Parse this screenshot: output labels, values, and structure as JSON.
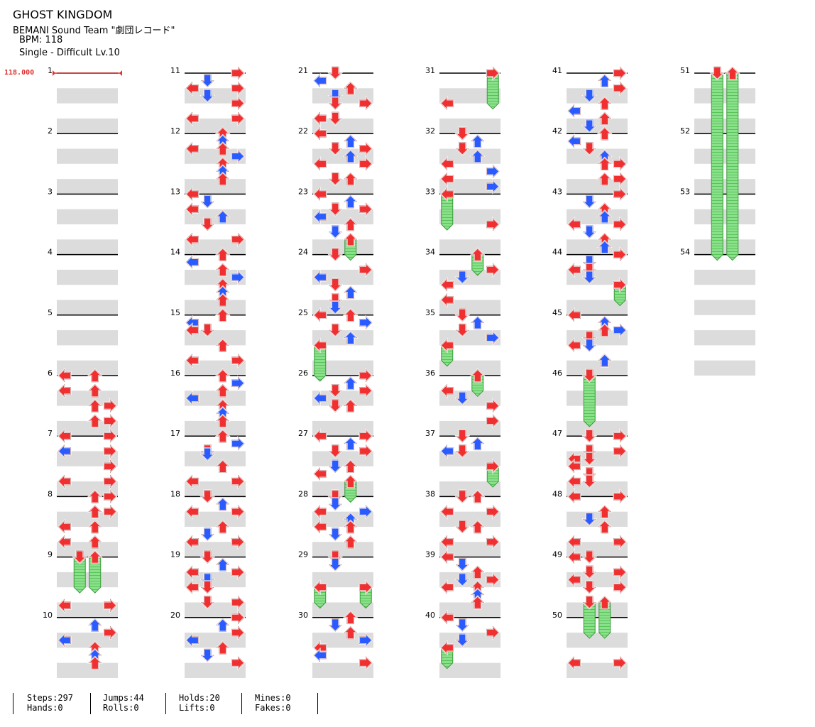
{
  "song": {
    "title": "GHOST KINGDOM",
    "artist": "BEMANI Sound Team \"劇団レコード\"",
    "bpm_line": "BPM: 118",
    "difficulty_line": "Single - Difficult Lv.10"
  },
  "bpm_marker": "118.000",
  "measures_per_column": 10,
  "total_measures": 54,
  "arrow_colors": {
    "quarter": "#f03030",
    "eighth": "#2a5bff",
    "hold": "#6fd66f"
  },
  "notes": [
    {
      "m": 6,
      "b": 0,
      "l": 0
    },
    {
      "m": 6,
      "b": 0,
      "l": 2
    },
    {
      "m": 6,
      "b": 1,
      "l": 0
    },
    {
      "m": 6,
      "b": 1,
      "l": 2
    },
    {
      "m": 6,
      "b": 2,
      "l": 2
    },
    {
      "m": 6,
      "b": 2,
      "l": 3
    },
    {
      "m": 6,
      "b": 3,
      "l": 2
    },
    {
      "m": 6,
      "b": 3,
      "l": 3
    },
    {
      "m": 7,
      "b": 0,
      "l": 0
    },
    {
      "m": 7,
      "b": 0,
      "l": 3
    },
    {
      "m": 7,
      "b": 1,
      "l": 0,
      "e": 1
    },
    {
      "m": 7,
      "b": 1,
      "l": 3
    },
    {
      "m": 7,
      "b": 2,
      "l": 3
    },
    {
      "m": 7,
      "b": 3,
      "l": 0
    },
    {
      "m": 7,
      "b": 3,
      "l": 3
    },
    {
      "m": 8,
      "b": 0,
      "l": 2
    },
    {
      "m": 8,
      "b": 0,
      "l": 3
    },
    {
      "m": 8,
      "b": 1,
      "l": 2
    },
    {
      "m": 8,
      "b": 1,
      "l": 3
    },
    {
      "m": 8,
      "b": 2,
      "l": 0
    },
    {
      "m": 8,
      "b": 2,
      "l": 2
    },
    {
      "m": 8,
      "b": 3,
      "l": 0
    },
    {
      "m": 8,
      "b": 3,
      "l": 2
    },
    {
      "m": 9,
      "b": 0,
      "l": 1,
      "h": 2
    },
    {
      "m": 9,
      "b": 0,
      "l": 2,
      "h": 2
    },
    {
      "m": 10,
      "b": -0.8,
      "l": 0
    },
    {
      "m": 10,
      "b": -0.8,
      "l": 3
    },
    {
      "m": 10,
      "b": 0.5,
      "l": 2,
      "e": 1
    },
    {
      "m": 10,
      "b": 1,
      "l": 3
    },
    {
      "m": 10,
      "b": 1.5,
      "l": 0,
      "e": 1
    },
    {
      "m": 10,
      "b": 2,
      "l": 2
    },
    {
      "m": 10,
      "b": 2.5,
      "l": 2,
      "e": 1
    },
    {
      "m": 10,
      "b": 3,
      "l": 2
    },
    {
      "m": 11,
      "b": 0,
      "l": 3
    },
    {
      "m": 11,
      "b": 0.5,
      "l": 1,
      "e": 1
    },
    {
      "m": 11,
      "b": 1,
      "l": 0
    },
    {
      "m": 11,
      "b": 1,
      "l": 3
    },
    {
      "m": 11,
      "b": 1.5,
      "l": 1,
      "e": 1
    },
    {
      "m": 11,
      "b": 2,
      "l": 3
    },
    {
      "m": 11,
      "b": 3,
      "l": 0
    },
    {
      "m": 11,
      "b": 3,
      "l": 3
    },
    {
      "m": 12,
      "b": 0,
      "l": 2
    },
    {
      "m": 12,
      "b": 0.5,
      "l": 2,
      "e": 1
    },
    {
      "m": 12,
      "b": 1,
      "l": 0
    },
    {
      "m": 12,
      "b": 1,
      "l": 2
    },
    {
      "m": 12,
      "b": 1.5,
      "l": 3,
      "e": 1
    },
    {
      "m": 12,
      "b": 2,
      "l": 2
    },
    {
      "m": 12,
      "b": 2.5,
      "l": 2,
      "e": 1
    },
    {
      "m": 12,
      "b": 3,
      "l": 2
    },
    {
      "m": 13,
      "b": 0,
      "l": 0
    },
    {
      "m": 13,
      "b": 0.5,
      "l": 1,
      "e": 1
    },
    {
      "m": 13,
      "b": 1,
      "l": 0
    },
    {
      "m": 13,
      "b": 1.5,
      "l": 2,
      "e": 1
    },
    {
      "m": 13,
      "b": 2,
      "l": 1
    },
    {
      "m": 13,
      "b": 3,
      "l": 0
    },
    {
      "m": 13,
      "b": 3,
      "l": 3
    },
    {
      "m": 14,
      "b": 0,
      "l": 2
    },
    {
      "m": 14,
      "b": 0.5,
      "l": 0,
      "e": 1
    },
    {
      "m": 14,
      "b": 1,
      "l": 2
    },
    {
      "m": 14,
      "b": 1.5,
      "l": 3,
      "e": 1
    },
    {
      "m": 14,
      "b": 2,
      "l": 2
    },
    {
      "m": 14,
      "b": 2.5,
      "l": 2,
      "e": 1
    },
    {
      "m": 14,
      "b": 3,
      "l": 2
    },
    {
      "m": 15,
      "b": 0,
      "l": 2
    },
    {
      "m": 15,
      "b": 0.5,
      "l": 0,
      "e": 1
    },
    {
      "m": 15,
      "b": 1,
      "l": 0
    },
    {
      "m": 15,
      "b": 1,
      "l": 1
    },
    {
      "m": 15,
      "b": 2,
      "l": 2
    },
    {
      "m": 15,
      "b": 3,
      "l": 0
    },
    {
      "m": 15,
      "b": 3,
      "l": 3
    },
    {
      "m": 16,
      "b": 0,
      "l": 2
    },
    {
      "m": 16,
      "b": 0.5,
      "l": 3,
      "e": 1
    },
    {
      "m": 16,
      "b": 1,
      "l": 2
    },
    {
      "m": 16,
      "b": 1.5,
      "l": 0,
      "e": 1
    },
    {
      "m": 16,
      "b": 2,
      "l": 2
    },
    {
      "m": 16,
      "b": 2.5,
      "l": 2,
      "e": 1
    },
    {
      "m": 16,
      "b": 3,
      "l": 2
    },
    {
      "m": 17,
      "b": 0,
      "l": 2
    },
    {
      "m": 17,
      "b": 0.5,
      "l": 3,
      "e": 1
    },
    {
      "m": 17,
      "b": 1,
      "l": 1
    },
    {
      "m": 17,
      "b": 1.2,
      "l": 1,
      "e": 1
    },
    {
      "m": 17,
      "b": 2,
      "l": 2
    },
    {
      "m": 17,
      "b": 3,
      "l": 0
    },
    {
      "m": 17,
      "b": 3,
      "l": 3
    },
    {
      "m": 18,
      "b": 0,
      "l": 1
    },
    {
      "m": 18,
      "b": 0.5,
      "l": 2,
      "e": 1
    },
    {
      "m": 18,
      "b": 1,
      "l": 0
    },
    {
      "m": 18,
      "b": 1,
      "l": 3
    },
    {
      "m": 18,
      "b": 2,
      "l": 2
    },
    {
      "m": 18,
      "b": 2.5,
      "l": 1,
      "e": 1
    },
    {
      "m": 18,
      "b": 3,
      "l": 0
    },
    {
      "m": 18,
      "b": 3,
      "l": 3
    },
    {
      "m": 19,
      "b": 0,
      "l": 1
    },
    {
      "m": 19,
      "b": 0.5,
      "l": 2,
      "e": 1
    },
    {
      "m": 19,
      "b": 1,
      "l": 0
    },
    {
      "m": 19,
      "b": 1,
      "l": 3
    },
    {
      "m": 19,
      "b": 1.5,
      "l": 1,
      "e": 1
    },
    {
      "m": 19,
      "b": 2,
      "l": 0
    },
    {
      "m": 19,
      "b": 2,
      "l": 1
    },
    {
      "m": 19,
      "b": 3,
      "l": 1
    },
    {
      "m": 19,
      "b": 3,
      "l": 3
    },
    {
      "m": 20,
      "b": 0,
      "l": 3
    },
    {
      "m": 20,
      "b": 0.5,
      "l": 2,
      "e": 1
    },
    {
      "m": 20,
      "b": 1,
      "l": 3
    },
    {
      "m": 20,
      "b": 1.5,
      "l": 0,
      "e": 1
    },
    {
      "m": 20,
      "b": 2,
      "l": 2
    },
    {
      "m": 20,
      "b": 2.5,
      "l": 1,
      "e": 1
    },
    {
      "m": 20,
      "b": 3,
      "l": 3
    },
    {
      "m": 21,
      "b": 0,
      "l": 1
    },
    {
      "m": 21,
      "b": 0.5,
      "l": 0,
      "e": 1
    },
    {
      "m": 21,
      "b": 1,
      "l": 2
    },
    {
      "m": 21,
      "b": 1.5,
      "l": 1,
      "e": 1
    },
    {
      "m": 21,
      "b": 2,
      "l": 1
    },
    {
      "m": 21,
      "b": 2,
      "l": 3
    },
    {
      "m": 21,
      "b": 3,
      "l": 0
    },
    {
      "m": 21,
      "b": 3,
      "l": 1
    },
    {
      "m": 22,
      "b": 0,
      "l": 0
    },
    {
      "m": 22,
      "b": 0.5,
      "l": 2,
      "e": 1
    },
    {
      "m": 22,
      "b": 1,
      "l": 1
    },
    {
      "m": 22,
      "b": 1,
      "l": 3
    },
    {
      "m": 22,
      "b": 1.5,
      "l": 2,
      "e": 1
    },
    {
      "m": 22,
      "b": 2,
      "l": 0
    },
    {
      "m": 22,
      "b": 2,
      "l": 3
    },
    {
      "m": 22,
      "b": 3,
      "l": 1
    },
    {
      "m": 22,
      "b": 3,
      "l": 2
    },
    {
      "m": 23,
      "b": 0,
      "l": 0
    },
    {
      "m": 23,
      "b": 0.5,
      "l": 2,
      "e": 1
    },
    {
      "m": 23,
      "b": 1,
      "l": 1
    },
    {
      "m": 23,
      "b": 1,
      "l": 3
    },
    {
      "m": 23,
      "b": 1.5,
      "l": 0,
      "e": 1
    },
    {
      "m": 23,
      "b": 2,
      "l": 2
    },
    {
      "m": 23,
      "b": 2.5,
      "l": 1,
      "e": 1
    },
    {
      "m": 23,
      "b": 3,
      "l": 2,
      "h": 1
    },
    {
      "m": 24,
      "b": 0,
      "l": 1
    },
    {
      "m": 24,
      "b": 1,
      "l": 3
    },
    {
      "m": 24,
      "b": 1.5,
      "l": 0,
      "e": 1
    },
    {
      "m": 24,
      "b": 2,
      "l": 1
    },
    {
      "m": 24,
      "b": 2.5,
      "l": 2,
      "e": 1
    },
    {
      "m": 24,
      "b": 3,
      "l": 1
    },
    {
      "m": 24,
      "b": 3.5,
      "l": 1,
      "e": 1
    },
    {
      "m": 25,
      "b": 0,
      "l": 0
    },
    {
      "m": 25,
      "b": 0,
      "l": 2
    },
    {
      "m": 25,
      "b": 0.5,
      "l": 3,
      "e": 1
    },
    {
      "m": 25,
      "b": 1,
      "l": 1
    },
    {
      "m": 25,
      "b": 1.5,
      "l": 2,
      "e": 1
    },
    {
      "m": 25,
      "b": 2,
      "l": 0,
      "h": 2
    },
    {
      "m": 26,
      "b": 0,
      "l": 3
    },
    {
      "m": 26,
      "b": 0.5,
      "l": 2,
      "e": 1
    },
    {
      "m": 26,
      "b": 1,
      "l": 1
    },
    {
      "m": 26,
      "b": 1,
      "l": 3
    },
    {
      "m": 26,
      "b": 1.5,
      "l": 0,
      "e": 1
    },
    {
      "m": 26,
      "b": 2,
      "l": 1
    },
    {
      "m": 26,
      "b": 2,
      "l": 2
    },
    {
      "m": 27,
      "b": 0,
      "l": 0
    },
    {
      "m": 27,
      "b": 0,
      "l": 3
    },
    {
      "m": 27,
      "b": 0.5,
      "l": 2,
      "e": 1
    },
    {
      "m": 27,
      "b": 1,
      "l": 1
    },
    {
      "m": 27,
      "b": 1,
      "l": 3
    },
    {
      "m": 27,
      "b": 2,
      "l": 1,
      "e": 1
    },
    {
      "m": 27,
      "b": 2,
      "l": 2
    },
    {
      "m": 27,
      "b": 2.5,
      "l": 0
    },
    {
      "m": 27,
      "b": 3,
      "l": 2,
      "h": 1
    },
    {
      "m": 28,
      "b": 0,
      "l": 1
    },
    {
      "m": 28,
      "b": 0.5,
      "l": 1,
      "e": 1
    },
    {
      "m": 28,
      "b": 1,
      "l": 0
    },
    {
      "m": 28,
      "b": 1,
      "l": 3,
      "e": 1
    },
    {
      "m": 28,
      "b": 1.5,
      "l": 2,
      "e": 1
    },
    {
      "m": 28,
      "b": 2,
      "l": 0
    },
    {
      "m": 28,
      "b": 2,
      "l": 2
    },
    {
      "m": 28,
      "b": 2.5,
      "l": 1,
      "e": 1
    },
    {
      "m": 28,
      "b": 3,
      "l": 2
    },
    {
      "m": 29,
      "b": 0,
      "l": 1
    },
    {
      "m": 29,
      "b": 0.5,
      "l": 1,
      "e": 1
    },
    {
      "m": 29,
      "b": 2,
      "l": 0,
      "h": 1
    },
    {
      "m": 29,
      "b": 2,
      "l": 3,
      "h": 1
    },
    {
      "m": 30,
      "b": 0,
      "l": 2
    },
    {
      "m": 30,
      "b": 0.5,
      "l": 1,
      "e": 1
    },
    {
      "m": 30,
      "b": 1,
      "l": 2
    },
    {
      "m": 30,
      "b": 1.5,
      "l": 3,
      "e": 1
    },
    {
      "m": 30,
      "b": 2,
      "l": 0
    },
    {
      "m": 30,
      "b": 2.5,
      "l": 0,
      "e": 1
    },
    {
      "m": 30,
      "b": 3,
      "l": 3
    },
    {
      "m": 31,
      "b": 0,
      "l": 3,
      "h": 2
    },
    {
      "m": 31,
      "b": 2,
      "l": 0
    },
    {
      "m": 32,
      "b": 0,
      "l": 1
    },
    {
      "m": 32,
      "b": 0.5,
      "l": 2,
      "e": 1
    },
    {
      "m": 32,
      "b": 1,
      "l": 1
    },
    {
      "m": 32,
      "b": 1.5,
      "l": 2,
      "e": 1
    },
    {
      "m": 32,
      "b": 2,
      "l": 0
    },
    {
      "m": 32,
      "b": 2.5,
      "l": 3,
      "e": 1
    },
    {
      "m": 32,
      "b": 3,
      "l": 0
    },
    {
      "m": 32,
      "b": 3.5,
      "l": 3,
      "e": 1
    },
    {
      "m": 33,
      "b": 0,
      "l": 0,
      "h": 2
    },
    {
      "m": 33,
      "b": 2,
      "l": 3
    },
    {
      "m": 34,
      "b": 0,
      "l": 2,
      "h": 1
    },
    {
      "m": 34,
      "b": 1,
      "l": 3
    },
    {
      "m": 34,
      "b": 1.5,
      "l": 1,
      "e": 1
    },
    {
      "m": 34,
      "b": 2,
      "l": 0
    },
    {
      "m": 34,
      "b": 3,
      "l": 0
    },
    {
      "m": 35,
      "b": 0,
      "l": 1
    },
    {
      "m": 35,
      "b": 0.5,
      "l": 2,
      "e": 1
    },
    {
      "m": 35,
      "b": 1,
      "l": 1
    },
    {
      "m": 35,
      "b": 1.5,
      "l": 3,
      "e": 1
    },
    {
      "m": 35,
      "b": 2,
      "l": 0,
      "h": 1
    },
    {
      "m": 36,
      "b": 0,
      "l": 2,
      "h": 1
    },
    {
      "m": 36,
      "b": 1,
      "l": 0
    },
    {
      "m": 36,
      "b": 1.5,
      "l": 1,
      "e": 1
    },
    {
      "m": 36,
      "b": 2,
      "l": 3
    },
    {
      "m": 36,
      "b": 3,
      "l": 3
    },
    {
      "m": 37,
      "b": 0,
      "l": 1
    },
    {
      "m": 37,
      "b": 0.5,
      "l": 2,
      "e": 1
    },
    {
      "m": 37,
      "b": 1,
      "l": 0,
      "e": 1
    },
    {
      "m": 37,
      "b": 1,
      "l": 1
    },
    {
      "m": 37,
      "b": 2,
      "l": 3,
      "h": 1
    },
    {
      "m": 38,
      "b": 0,
      "l": 1
    },
    {
      "m": 38,
      "b": 0,
      "l": 2
    },
    {
      "m": 38,
      "b": 1,
      "l": 0
    },
    {
      "m": 38,
      "b": 1,
      "l": 3
    },
    {
      "m": 38,
      "b": 2,
      "l": 1
    },
    {
      "m": 38,
      "b": 2,
      "l": 2
    },
    {
      "m": 38,
      "b": 3,
      "l": 0
    },
    {
      "m": 38,
      "b": 3,
      "l": 3
    },
    {
      "m": 39,
      "b": 0,
      "l": 0
    },
    {
      "m": 39,
      "b": 0.5,
      "l": 1,
      "e": 1
    },
    {
      "m": 39,
      "b": 1,
      "l": 2
    },
    {
      "m": 39,
      "b": 1.5,
      "l": 1,
      "e": 1
    },
    {
      "m": 39,
      "b": 1.5,
      "l": 3
    },
    {
      "m": 39,
      "b": 2,
      "l": 0
    },
    {
      "m": 39,
      "b": 2,
      "l": 2
    },
    {
      "m": 39,
      "b": 2.5,
      "l": 2,
      "e": 1
    },
    {
      "m": 39,
      "b": 3,
      "l": 2
    },
    {
      "m": 40,
      "b": 0,
      "l": 0
    },
    {
      "m": 40,
      "b": 0.5,
      "l": 1,
      "e": 1
    },
    {
      "m": 40,
      "b": 1,
      "l": 3
    },
    {
      "m": 40,
      "b": 1.5,
      "l": 1,
      "e": 1
    },
    {
      "m": 40,
      "b": 2,
      "l": 0,
      "h": 1
    },
    {
      "m": 41,
      "b": 0,
      "l": 3
    },
    {
      "m": 41,
      "b": 0.5,
      "l": 2,
      "e": 1
    },
    {
      "m": 41,
      "b": 1,
      "l": 3
    },
    {
      "m": 41,
      "b": 1.5,
      "l": 1,
      "e": 1
    },
    {
      "m": 41,
      "b": 2,
      "l": 2
    },
    {
      "m": 41,
      "b": 2.5,
      "l": 0,
      "e": 1
    },
    {
      "m": 41,
      "b": 3,
      "l": 2
    },
    {
      "m": 41,
      "b": 3.5,
      "l": 1,
      "e": 1
    },
    {
      "m": 42,
      "b": 0,
      "l": 2
    },
    {
      "m": 42,
      "b": 0.5,
      "l": 0,
      "e": 1
    },
    {
      "m": 42,
      "b": 1,
      "l": 1
    },
    {
      "m": 42,
      "b": 1.5,
      "l": 2,
      "e": 1
    },
    {
      "m": 42,
      "b": 2,
      "l": 2
    },
    {
      "m": 42,
      "b": 2,
      "l": 3
    },
    {
      "m": 42,
      "b": 3,
      "l": 2
    },
    {
      "m": 42,
      "b": 3,
      "l": 3
    },
    {
      "m": 43,
      "b": 0,
      "l": 3
    },
    {
      "m": 43,
      "b": 0.5,
      "l": 1,
      "e": 1
    },
    {
      "m": 43,
      "b": 1,
      "l": 2
    },
    {
      "m": 43,
      "b": 1.5,
      "l": 2,
      "e": 1
    },
    {
      "m": 43,
      "b": 2,
      "l": 0
    },
    {
      "m": 43,
      "b": 2,
      "l": 3
    },
    {
      "m": 43,
      "b": 2.5,
      "l": 1,
      "e": 1
    },
    {
      "m": 43,
      "b": 3,
      "l": 2
    },
    {
      "m": 43,
      "b": 3.5,
      "l": 2,
      "e": 1
    },
    {
      "m": 44,
      "b": 0,
      "l": 3
    },
    {
      "m": 44,
      "b": 0.5,
      "l": 1,
      "e": 1
    },
    {
      "m": 44,
      "b": 1,
      "l": 0
    },
    {
      "m": 44,
      "b": 1,
      "l": 1
    },
    {
      "m": 44,
      "b": 1.5,
      "l": 1,
      "e": 1
    },
    {
      "m": 44,
      "b": 2,
      "l": 3,
      "h": 1
    },
    {
      "m": 45,
      "b": 0,
      "l": 0
    },
    {
      "m": 45,
      "b": 0.5,
      "l": 2,
      "e": 1
    },
    {
      "m": 45,
      "b": 1,
      "l": 2
    },
    {
      "m": 45,
      "b": 1,
      "l": 3,
      "e": 1
    },
    {
      "m": 45,
      "b": 1.5,
      "l": 1
    },
    {
      "m": 45,
      "b": 2,
      "l": 1,
      "e": 1
    },
    {
      "m": 45,
      "b": 2,
      "l": 0
    },
    {
      "m": 45,
      "b": 3,
      "l": 2,
      "e": 1
    },
    {
      "m": 46,
      "b": 0,
      "l": 1,
      "h": 3
    },
    {
      "m": 47,
      "b": 0,
      "l": 1
    },
    {
      "m": 47,
      "b": 0,
      "l": 3
    },
    {
      "m": 47,
      "b": 1,
      "l": 1
    },
    {
      "m": 47,
      "b": 1,
      "l": 3
    },
    {
      "m": 47,
      "b": 1.5,
      "l": 0
    },
    {
      "m": 47,
      "b": 1.5,
      "l": 1
    },
    {
      "m": 47,
      "b": 2,
      "l": 0
    },
    {
      "m": 47,
      "b": 2.5,
      "l": 1
    },
    {
      "m": 47,
      "b": 3,
      "l": 0
    },
    {
      "m": 47,
      "b": 3,
      "l": 1
    },
    {
      "m": 48,
      "b": 0,
      "l": 0
    },
    {
      "m": 48,
      "b": 0,
      "l": 3
    },
    {
      "m": 48,
      "b": 1,
      "l": 2
    },
    {
      "m": 48,
      "b": 1.5,
      "l": 1,
      "e": 1
    },
    {
      "m": 48,
      "b": 2,
      "l": 2
    },
    {
      "m": 49,
      "b": -1,
      "l": 0
    },
    {
      "m": 49,
      "b": -1,
      "l": 3
    },
    {
      "m": 49,
      "b": 0,
      "l": 0
    },
    {
      "m": 49,
      "b": 0,
      "l": 1
    },
    {
      "m": 49,
      "b": 1,
      "l": 1
    },
    {
      "m": 49,
      "b": 1,
      "l": 3
    },
    {
      "m": 49,
      "b": 1.5,
      "l": 0
    },
    {
      "m": 49,
      "b": 2,
      "l": 1
    },
    {
      "m": 49,
      "b": 2,
      "l": 3
    },
    {
      "m": 49,
      "b": 3,
      "l": 1,
      "h": 2
    },
    {
      "m": 49,
      "b": 3,
      "l": 2,
      "h": 2
    },
    {
      "m": 50,
      "b": 3,
      "l": 0
    },
    {
      "m": 50,
      "b": 3,
      "l": 3
    },
    {
      "m": 51,
      "b": 0,
      "l": 1,
      "h": 12
    },
    {
      "m": 51,
      "b": 0,
      "l": 2,
      "h": 12
    }
  ],
  "stats": {
    "steps": "Steps:297",
    "hands": "Hands:0",
    "jumps": "Jumps:44",
    "rolls": "Rolls:0",
    "holds": "Holds:20",
    "lifts": "Lifts:0",
    "mines": "Mines:0",
    "fakes": "Fakes:0"
  }
}
